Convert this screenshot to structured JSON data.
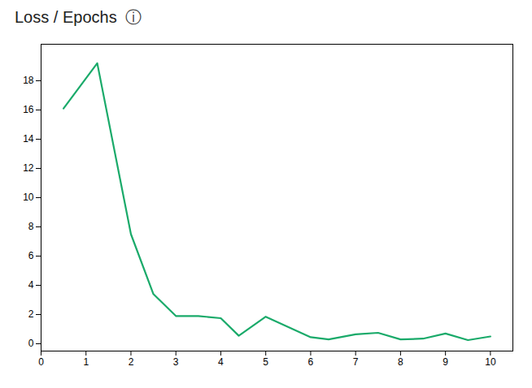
{
  "chart_data": {
    "type": "line",
    "title": "Loss / Epochs",
    "annotations": [
      "ⓘ"
    ],
    "x": [
      0.5,
      1.25,
      2.0,
      2.5,
      3.0,
      3.5,
      4.0,
      4.4,
      5.0,
      6.0,
      6.4,
      7.0,
      7.5,
      8.0,
      8.5,
      9.0,
      9.5,
      10.0
    ],
    "values": [
      16.1,
      19.2,
      7.5,
      3.4,
      1.9,
      1.9,
      1.75,
      0.55,
      1.85,
      0.45,
      0.3,
      0.65,
      0.75,
      0.3,
      0.35,
      0.7,
      0.25,
      0.5
    ],
    "color": "#1aaa6a",
    "xlim": [
      0,
      10.5
    ],
    "ylim": [
      -0.5,
      20.5
    ],
    "xticks": [
      0,
      1,
      2,
      3,
      4,
      5,
      6,
      7,
      8,
      9,
      10
    ],
    "yticks": [
      0,
      2,
      4,
      6,
      8,
      10,
      12,
      14,
      16,
      18
    ],
    "grid": false
  }
}
